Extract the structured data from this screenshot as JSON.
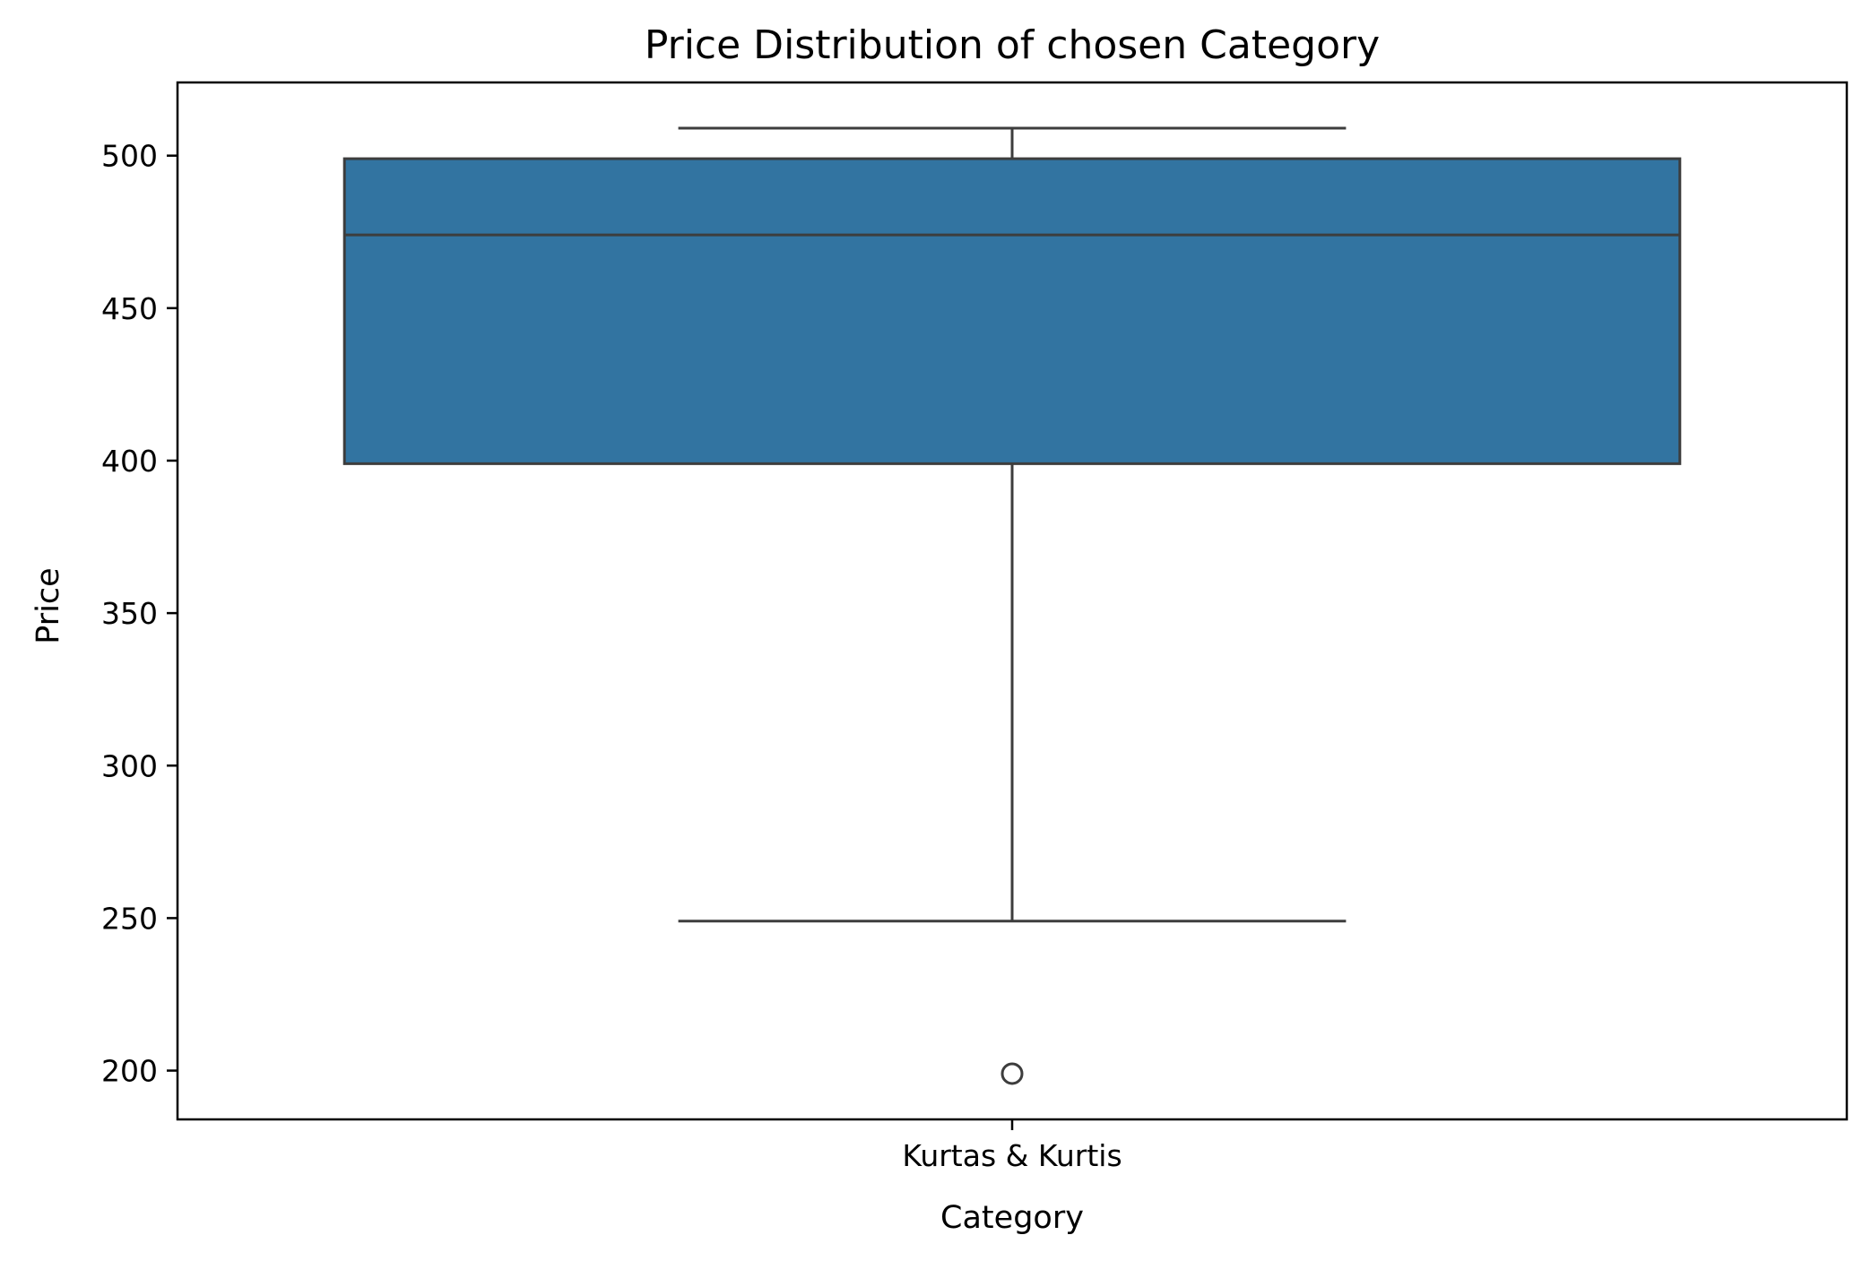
{
  "chart_data": {
    "type": "box",
    "title": "Price Distribution of chosen Category",
    "xlabel": "Category",
    "ylabel": "Price",
    "categories": [
      "Kurtas & Kurtis"
    ],
    "boxes": [
      {
        "category": "Kurtas & Kurtis",
        "whisker_low": 249,
        "q1": 399,
        "median": 474,
        "q3": 499,
        "whisker_high": 509,
        "outliers": [
          199
        ]
      }
    ],
    "ylim": [
      184,
      524
    ],
    "yticks": [
      200,
      250,
      300,
      350,
      400,
      450,
      500
    ],
    "grid": false,
    "box_color": "#3274a1",
    "line_color": "#3d3d3d"
  }
}
